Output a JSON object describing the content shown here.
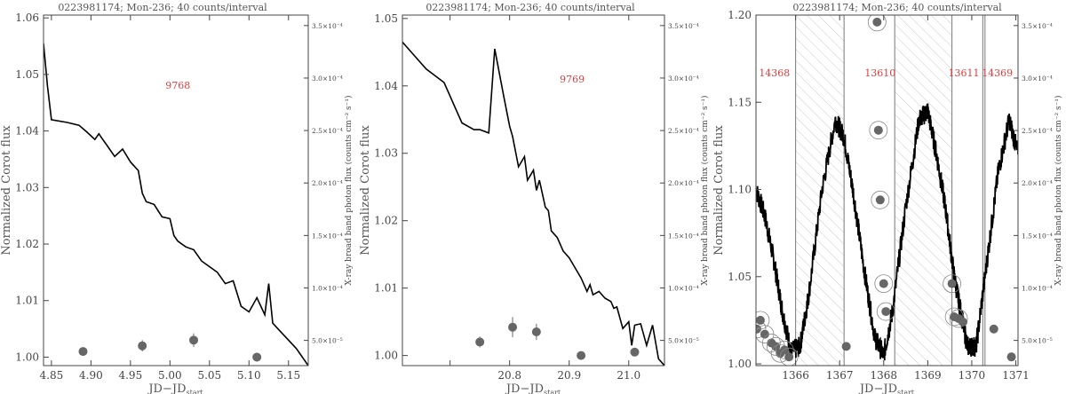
{
  "colors": {
    "curve": "#000000",
    "points": "#666666",
    "annotation": "#e03c3c",
    "axis": "#444444",
    "hatch": "#bbbbbb"
  },
  "chart_data": [
    {
      "type": "line",
      "title": "0223981174; Mon-236; 40 counts/interval",
      "xlabel": "JD−JD",
      "xlabel_sub": "start",
      "ylabel": "Normalized Corot flux",
      "ylabel_right": "X-ray broad band photon flux (counts cm⁻² s⁻¹)",
      "xlim": [
        4.84,
        5.175
      ],
      "ylim": [
        0.9985,
        1.0605
      ],
      "xticks": [
        4.85,
        4.9,
        4.95,
        5.0,
        5.05,
        5.1,
        5.15
      ],
      "xtick_labels": [
        "4.85",
        "4.90",
        "4.95",
        "5.00",
        "5.05",
        "5.10",
        "5.15"
      ],
      "yticks": [
        1.0,
        1.01,
        1.02,
        1.03,
        1.04,
        1.05,
        1.06
      ],
      "ytick_labels": [
        "1.00",
        "1.01",
        "1.02",
        "1.03",
        "1.04",
        "1.05",
        "1.06"
      ],
      "y2lim": [
        2.6e-05,
        0.00036
      ],
      "y2ticks": [
        5e-05,
        0.0001,
        0.00015,
        0.0002,
        0.00025,
        0.0003,
        0.00035
      ],
      "y2tick_labels": [
        "5.0×10⁻⁵",
        "1.0×10⁻⁴",
        "1.5×10⁻⁴",
        "2.0×10⁻⁴",
        "2.5×10⁻⁴",
        "3.0×10⁻⁴",
        "3.5×10⁻⁴"
      ],
      "curve": {
        "x": [
          4.84,
          4.845,
          4.85,
          4.87,
          4.885,
          4.895,
          4.905,
          4.91,
          4.915,
          4.92,
          4.93,
          4.94,
          4.95,
          4.96,
          4.965,
          4.97,
          4.98,
          4.99,
          5.0,
          5.005,
          5.01,
          5.02,
          5.03,
          5.04,
          5.05,
          5.06,
          5.07,
          5.08,
          5.09,
          5.1,
          5.11,
          5.12,
          5.125,
          5.13,
          5.14,
          5.15,
          5.16,
          5.175
        ],
        "y": [
          1.0555,
          1.048,
          1.042,
          1.0415,
          1.041,
          1.0398,
          1.0385,
          1.0395,
          1.0385,
          1.0375,
          1.0355,
          1.0368,
          1.0345,
          1.033,
          1.029,
          1.0275,
          1.027,
          1.0248,
          1.0245,
          1.0215,
          1.0205,
          1.0195,
          1.019,
          1.017,
          1.016,
          1.015,
          1.013,
          1.0135,
          1.009,
          1.008,
          1.0105,
          1.0075,
          1.013,
          1.006,
          1.0045,
          1.003,
          1.0015,
          0.9985
        ]
      },
      "points": {
        "x": [
          4.89,
          4.965,
          5.03,
          5.11
        ],
        "y": [
          1.001,
          1.002,
          1.003,
          1.0
        ],
        "err": [
          0.0005,
          0.001,
          0.0012,
          0.0008
        ]
      },
      "annotations": [
        {
          "text": "9768",
          "x": 5.01,
          "y": 1.0475
        }
      ]
    },
    {
      "type": "line",
      "title": "0223981174; Mon-236; 40 counts/interval",
      "xlabel": "JD−JD",
      "xlabel_sub": "start",
      "ylabel": "Normalized Corot flux",
      "ylabel_right": "X-ray broad band photon flux (counts cm⁻² s⁻¹)",
      "xlim": [
        20.62,
        21.06
      ],
      "ylim": [
        0.9985,
        1.0505
      ],
      "xticks": [
        20.7,
        20.8,
        20.9,
        21.0
      ],
      "xtick_labels": [
        "",
        "20.8",
        "20.9",
        "21.0"
      ],
      "yticks": [
        1.0,
        1.01,
        1.02,
        1.03,
        1.04,
        1.05
      ],
      "ytick_labels": [
        "1.00",
        "1.01",
        "1.02",
        "1.03",
        "1.04",
        "1.05"
      ],
      "y2lim": [
        2.6e-05,
        0.00036
      ],
      "y2ticks": [
        5e-05,
        0.0001,
        0.00015,
        0.0002,
        0.00025,
        0.0003,
        0.00035
      ],
      "y2tick_labels": [
        "5.0×10⁻⁵",
        "1.0×10⁻⁴",
        "1.5×10⁻⁴",
        "2.0×10⁻⁴",
        "2.5×10⁻⁴",
        "3.0×10⁻⁴",
        "3.5×10⁻⁴"
      ],
      "curve": {
        "x": [
          20.62,
          20.64,
          20.66,
          20.69,
          20.7,
          20.72,
          20.74,
          20.75,
          20.765,
          20.775,
          20.79,
          20.8,
          20.805,
          20.815,
          20.825,
          20.83,
          20.84,
          20.845,
          20.85,
          20.86,
          20.865,
          20.87,
          20.88,
          20.89,
          20.9,
          20.91,
          20.92,
          20.93,
          20.935,
          20.94,
          20.95,
          20.96,
          20.97,
          20.975,
          20.98,
          20.99,
          21.0,
          21.005,
          21.01,
          21.02,
          21.03,
          21.04,
          21.05,
          21.06
        ],
        "y": [
          1.0465,
          1.0445,
          1.0425,
          1.0405,
          1.0385,
          1.0345,
          1.0335,
          1.0335,
          1.033,
          1.0455,
          1.0385,
          1.034,
          1.0325,
          1.028,
          1.0295,
          1.026,
          1.0275,
          1.0245,
          1.026,
          1.022,
          1.0215,
          1.0185,
          1.0175,
          1.0155,
          1.0145,
          1.013,
          1.0115,
          1.0095,
          1.0105,
          1.009,
          1.0095,
          1.0085,
          1.008,
          1.007,
          1.0072,
          1.004,
          1.005,
          1.0015,
          1.0045,
          1.0047,
          1.0015,
          1.0045,
          0.9995,
          0.9985
        ]
      },
      "points": {
        "x": [
          20.75,
          20.805,
          20.845,
          20.92,
          21.01
        ],
        "y": [
          1.002,
          1.0042,
          1.0035,
          1.0,
          1.0005
        ],
        "err": [
          0.0008,
          0.0015,
          0.0012,
          0.0004,
          0.0006
        ]
      },
      "annotations": [
        {
          "text": "9769",
          "x": 20.905,
          "y": 1.0405
        }
      ]
    },
    {
      "type": "line",
      "title": "0223981174; Mon-236; 40 counts/interval",
      "xlabel": "JD−JD",
      "xlabel_sub": "start",
      "ylabel": "Normalized Corot flux",
      "ylabel_right": "X-ray broad band photon flux (counts cm⁻² s⁻¹)",
      "xlim": [
        1365.1,
        1371.05
      ],
      "ylim": [
        0.999,
        1.2
      ],
      "xticks": [
        1366,
        1367,
        1368,
        1369,
        1370,
        1371
      ],
      "xtick_labels": [
        "1366",
        "1367",
        "1368",
        "1369",
        "1370",
        "1371"
      ],
      "yticks": [
        1.0,
        1.05,
        1.1,
        1.15,
        1.2
      ],
      "ytick_labels": [
        "1.00",
        "1.05",
        "1.10",
        "1.15",
        "1.20"
      ],
      "y2lim": [
        2.6e-05,
        0.00036
      ],
      "y2ticks": [
        5e-05,
        0.0001,
        0.00015,
        0.0002,
        0.00025,
        0.0003,
        0.00035
      ],
      "y2tick_labels": [
        "5.0×10⁻⁵",
        "1.0×10⁻⁴",
        "1.5×10⁻⁴",
        "2.0×10⁻⁴",
        "2.5×10⁻⁴",
        "3.0×10⁻⁴",
        "3.5×10⁻⁴"
      ],
      "curve": {
        "x": [
          1365.1,
          1365.3,
          1365.5,
          1365.7,
          1365.9,
          1366.1,
          1366.3,
          1366.6,
          1366.9,
          1367.1,
          1367.3,
          1367.55,
          1367.8,
          1368.0,
          1368.2,
          1368.5,
          1368.8,
          1369.0,
          1369.2,
          1369.4,
          1369.6,
          1369.75,
          1369.9,
          1370.1,
          1370.35,
          1370.6,
          1370.85,
          1371.05
        ],
        "y": [
          1.1,
          1.085,
          1.06,
          1.03,
          1.007,
          1.01,
          1.04,
          1.1,
          1.14,
          1.13,
          1.1,
          1.055,
          1.015,
          1.005,
          1.03,
          1.09,
          1.14,
          1.145,
          1.12,
          1.09,
          1.05,
          1.03,
          1.01,
          1.01,
          1.06,
          1.11,
          1.14,
          1.12
        ]
      },
      "curve_scatter": 0.006,
      "points": {
        "x": [
          1365.12,
          1365.2,
          1365.3,
          1365.45,
          1365.55,
          1365.65,
          1365.75,
          1365.85,
          1367.15,
          1367.85,
          1367.88,
          1367.92,
          1368.0,
          1368.05,
          1369.55,
          1369.6,
          1369.7,
          1369.8,
          1370.5,
          1370.9
        ],
        "y": [
          1.02,
          1.025,
          1.017,
          1.012,
          1.01,
          1.006,
          1.008,
          1.004,
          1.01,
          1.196,
          1.134,
          1.094,
          1.046,
          1.03,
          1.046,
          1.027,
          1.026,
          1.024,
          1.02,
          1.004
        ],
        "circled": [
          true,
          true,
          true,
          true,
          true,
          true,
          true,
          true,
          false,
          true,
          true,
          true,
          true,
          true,
          true,
          true,
          true,
          false,
          false,
          false
        ]
      },
      "vertical_lines": [
        1366.0,
        1367.1,
        1368.25,
        1369.55,
        1370.25,
        1370.3
      ],
      "hatched_regions": [
        [
          1366.0,
          1367.1
        ],
        [
          1368.25,
          1369.55
        ]
      ],
      "annotations": [
        {
          "text": "14368",
          "x": 1365.52,
          "y": 1.165
        },
        {
          "text": "13610",
          "x": 1367.92,
          "y": 1.165
        },
        {
          "text": "13611",
          "x": 1369.82,
          "y": 1.165
        },
        {
          "text": "14369",
          "x": 1370.58,
          "y": 1.165
        }
      ]
    }
  ]
}
